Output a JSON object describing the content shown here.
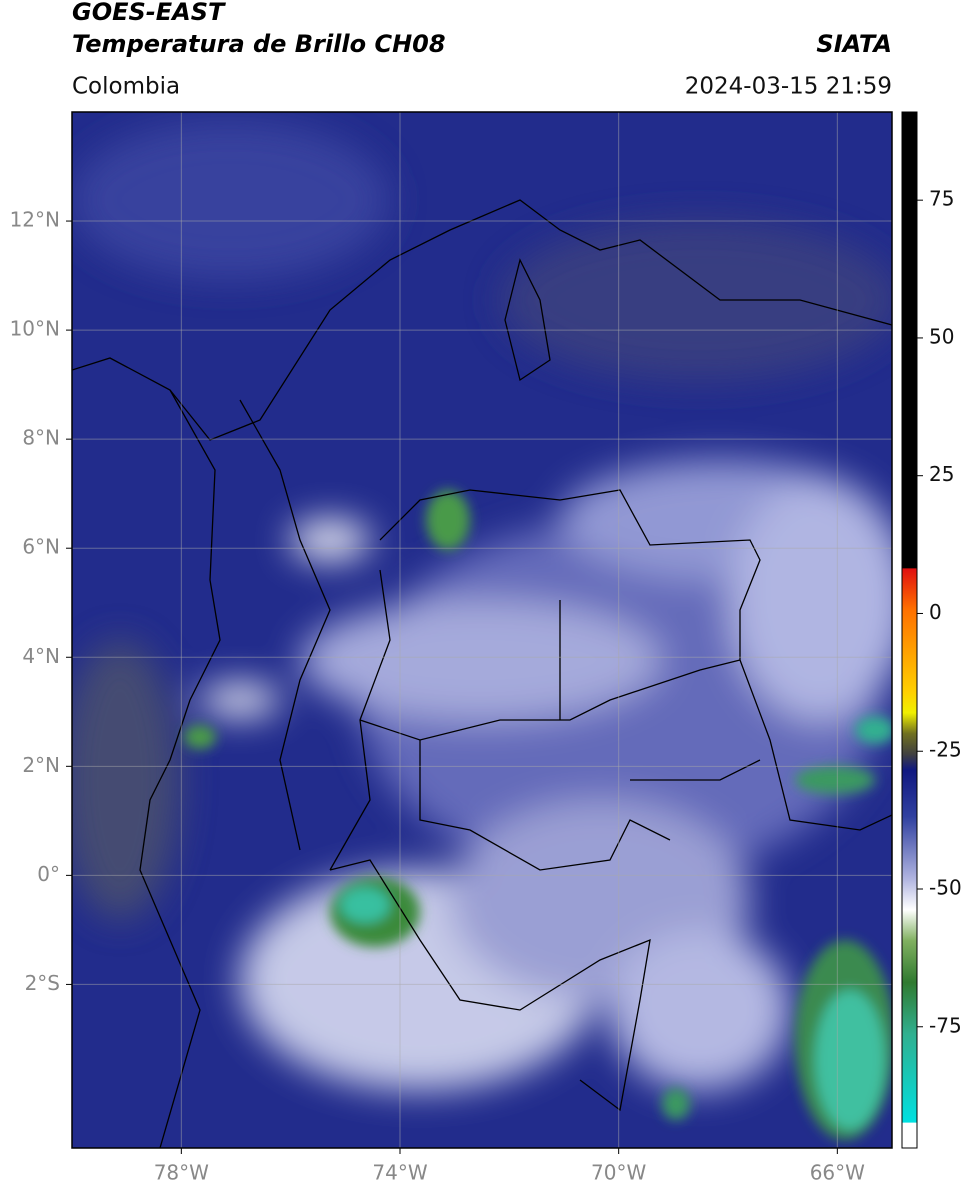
{
  "header": {
    "title": "GOES-EAST",
    "subtitle": "Temperatura de Brillo CH08",
    "region": "Colombia",
    "source": "SIATA",
    "timestamp": "2024-03-15 21:59"
  },
  "map": {
    "xlim": [
      -80,
      -65
    ],
    "ylim": [
      -5,
      14
    ],
    "grid": true,
    "xticks": [
      {
        "value": -78,
        "label": "78°W"
      },
      {
        "value": -74,
        "label": "74°W"
      },
      {
        "value": -70,
        "label": "70°W"
      },
      {
        "value": -66,
        "label": "66°W"
      }
    ],
    "yticks": [
      {
        "value": 12,
        "label": "12°N"
      },
      {
        "value": 10,
        "label": "10°N"
      },
      {
        "value": 8,
        "label": "8°N"
      },
      {
        "value": 6,
        "label": "6°N"
      },
      {
        "value": 4,
        "label": "4°N"
      },
      {
        "value": 2,
        "label": "2°N"
      },
      {
        "value": 0,
        "label": "0°"
      },
      {
        "value": -2,
        "label": "2°S"
      }
    ]
  },
  "colorbar": {
    "lim": [
      -97,
      91
    ],
    "ticks": [
      75,
      50,
      25,
      0,
      -25,
      -50,
      -75
    ]
  }
}
